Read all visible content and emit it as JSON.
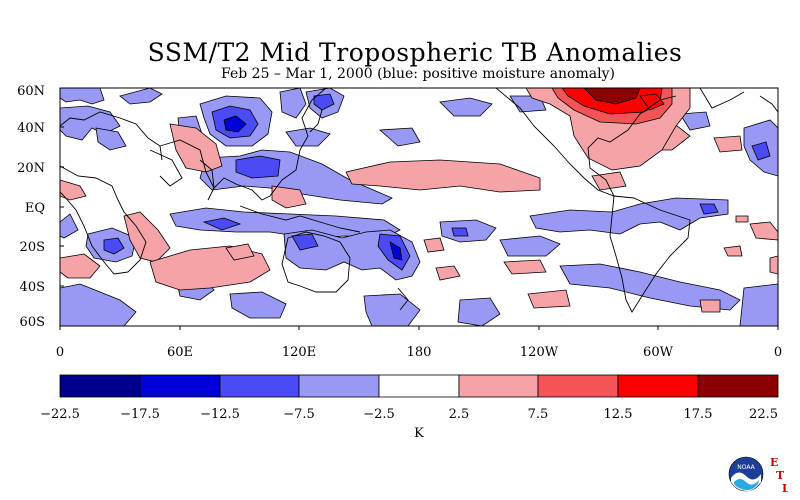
{
  "title": "SSM/T2 Mid Tropospheric TB Anomalies",
  "subtitle": "Feb 25 – Mar 1, 2000 (blue: positive moisture anomaly)",
  "lat_labels": [
    "60N",
    "40N",
    "20N",
    "EQ",
    "20S",
    "40S",
    "60S"
  ],
  "lon_labels": [
    "0",
    "60E",
    "120E",
    "180",
    "120W",
    "60W",
    "0"
  ],
  "colorbar": {
    "ticks": [
      "−22.5",
      "−17.5",
      "−12.5",
      "−7.5",
      "−2.5",
      "2.5",
      "7.5",
      "12.5",
      "17.5",
      "22.5"
    ],
    "colors": [
      "#00008c",
      "#0000d8",
      "#4b4bf5",
      "#9898f5",
      "#ffffff",
      "#f5a3a6",
      "#f45456",
      "#ff0000",
      "#8b0000"
    ],
    "units": "K"
  },
  "colors": {
    "negative_light": "#9898f5",
    "negative_mid": "#4b4bf5",
    "negative_dark": "#0000d8",
    "positive_light": "#f5a3a6",
    "positive_mid": "#f45456",
    "positive_dark": "#ff0000",
    "positive_darkest": "#8b0000"
  },
  "logo": {
    "icon": "noaa-logo-icon",
    "text": "NOAA",
    "lab_letters": [
      "E",
      "T",
      "L"
    ]
  }
}
